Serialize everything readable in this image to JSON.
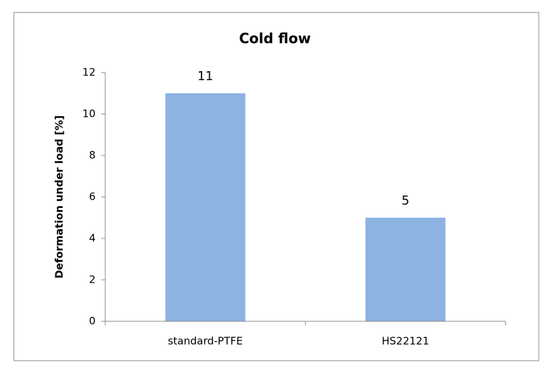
{
  "chart_data": {
    "type": "bar",
    "title": "Cold flow",
    "y_label": "Deformation under load [%]",
    "categories": [
      "standard-PTFE",
      "HS22121"
    ],
    "values": [
      11,
      5
    ],
    "color": "#8db3e2",
    "ylim": [
      0,
      12
    ],
    "yticks": [
      0,
      2,
      4,
      6,
      8,
      10,
      12
    ],
    "grid": false
  }
}
